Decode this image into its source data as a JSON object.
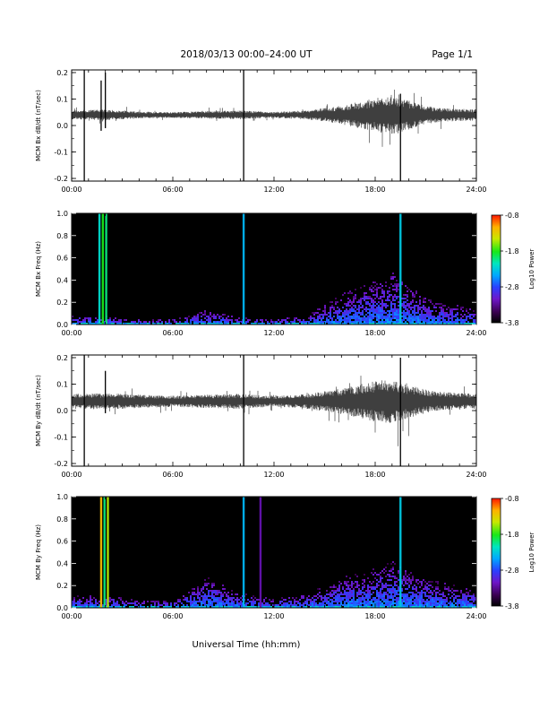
{
  "header": {
    "title": "2018/03/13   00:00–24:00 UT",
    "page": "Page 1/1"
  },
  "xlabel": "Universal Time (hh:mm)",
  "colors": {
    "trace": "#000000",
    "background": "#000000",
    "colormap": [
      "#000000",
      "#3a0050",
      "#6e16c8",
      "#2a40ff",
      "#00a8ff",
      "#00e6c0",
      "#18e818",
      "#c8e800",
      "#ffb000",
      "#ff1800"
    ]
  },
  "chart_data": [
    {
      "type": "line",
      "panel": "bx-dbdt",
      "ylabel": "MCM Bx dB/dt (nT/sec)",
      "xlim": [
        0,
        24
      ],
      "ylim": [
        -0.21,
        0.21
      ],
      "xticks": [
        "00:00",
        "06:00",
        "12:00",
        "18:00",
        "24:00"
      ],
      "yticks": [
        "-0.2",
        "-0.1",
        "0.0",
        "0.1",
        "0.2"
      ],
      "baseline": 0.04,
      "amplitude_envelope": {
        "hours": [
          0,
          2,
          4,
          6,
          8,
          10,
          12,
          14,
          16,
          17,
          18,
          19,
          20,
          21,
          22,
          24
        ],
        "amplitude": [
          0.012,
          0.015,
          0.009,
          0.008,
          0.01,
          0.012,
          0.008,
          0.012,
          0.025,
          0.035,
          0.045,
          0.055,
          0.04,
          0.025,
          0.018,
          0.015
        ]
      },
      "spikes": [
        {
          "hour": 0.75,
          "min": -0.21,
          "max": 0.21
        },
        {
          "hour": 1.75,
          "min": -0.02,
          "max": 0.17
        },
        {
          "hour": 2.0,
          "min": -0.01,
          "max": 0.2
        },
        {
          "hour": 10.2,
          "min": -0.21,
          "max": 0.21
        },
        {
          "hour": 19.5,
          "min": -0.21,
          "max": 0.12
        }
      ]
    },
    {
      "type": "heatmap",
      "panel": "bx-freq",
      "ylabel": "MCM Bx Freq (Hz)",
      "colorbar_label": "Log10 Power",
      "colorbar_ticks": [
        "-0.8",
        "-1.8",
        "-2.8",
        "-3.8"
      ],
      "clim": [
        -3.8,
        -0.8
      ],
      "xlim": [
        0,
        24
      ],
      "ylim": [
        0,
        1.0
      ],
      "xticks": [
        "00:00",
        "06:00",
        "12:00",
        "18:00",
        "24:00"
      ],
      "yticks": [
        "0.0",
        "0.2",
        "0.4",
        "0.6",
        "0.8",
        "1.0"
      ],
      "activity_envelope": {
        "hours": [
          0,
          2,
          4,
          6,
          8,
          10,
          12,
          14,
          16,
          17,
          18,
          19,
          20,
          21,
          22,
          24
        ],
        "max_freq": [
          0.08,
          0.08,
          0.05,
          0.05,
          0.12,
          0.06,
          0.05,
          0.08,
          0.25,
          0.3,
          0.35,
          0.42,
          0.3,
          0.22,
          0.18,
          0.12
        ]
      },
      "broadband_bursts": [
        {
          "hour": 1.65,
          "level": -2.2
        },
        {
          "hour": 1.85,
          "level": -1.8
        },
        {
          "hour": 2.05,
          "level": -2.0
        },
        {
          "hour": 10.2,
          "level": -2.4
        },
        {
          "hour": 19.5,
          "level": -2.3
        }
      ]
    },
    {
      "type": "line",
      "panel": "by-dbdt",
      "ylabel": "MCM By dB/dt (nT/sec)",
      "xlim": [
        0,
        24
      ],
      "ylim": [
        -0.21,
        0.21
      ],
      "xticks": [
        "00:00",
        "06:00",
        "12:00",
        "18:00",
        "24:00"
      ],
      "yticks": [
        "-0.2",
        "-0.1",
        "0.0",
        "0.1",
        "0.2"
      ],
      "baseline": 0.035,
      "amplitude_envelope": {
        "hours": [
          0,
          2,
          4,
          6,
          8,
          10,
          12,
          14,
          16,
          17,
          18,
          19,
          20,
          21,
          22,
          24
        ],
        "amplitude": [
          0.02,
          0.022,
          0.018,
          0.015,
          0.018,
          0.02,
          0.014,
          0.02,
          0.035,
          0.045,
          0.055,
          0.06,
          0.045,
          0.032,
          0.025,
          0.02
        ]
      },
      "spikes": [
        {
          "hour": 0.75,
          "min": -0.21,
          "max": 0.21
        },
        {
          "hour": 2.0,
          "min": -0.01,
          "max": 0.15
        },
        {
          "hour": 10.2,
          "min": -0.21,
          "max": 0.21
        },
        {
          "hour": 19.5,
          "min": -0.21,
          "max": 0.2
        }
      ]
    },
    {
      "type": "heatmap",
      "panel": "by-freq",
      "ylabel": "MCM By Freq (Hz)",
      "colorbar_label": "Log10 Power",
      "colorbar_ticks": [
        "-0.8",
        "-1.8",
        "-2.8",
        "-3.8"
      ],
      "clim": [
        -3.8,
        -0.8
      ],
      "xlim": [
        0,
        24
      ],
      "ylim": [
        0,
        1.0
      ],
      "xticks": [
        "00:00",
        "06:00",
        "12:00",
        "18:00",
        "24:00"
      ],
      "yticks": [
        "0.0",
        "0.2",
        "0.4",
        "0.6",
        "0.8",
        "1.0"
      ],
      "activity_envelope": {
        "hours": [
          0,
          2,
          4,
          6,
          8,
          10,
          12,
          14,
          16,
          17,
          18,
          19,
          20,
          21,
          22,
          24
        ],
        "max_freq": [
          0.1,
          0.1,
          0.07,
          0.06,
          0.25,
          0.12,
          0.08,
          0.12,
          0.25,
          0.28,
          0.32,
          0.38,
          0.3,
          0.24,
          0.2,
          0.15
        ]
      },
      "broadband_bursts": [
        {
          "hour": 1.75,
          "level": -1.2
        },
        {
          "hour": 1.95,
          "level": -2.0
        },
        {
          "hour": 2.15,
          "level": -1.5
        },
        {
          "hour": 10.2,
          "level": -2.4
        },
        {
          "hour": 11.2,
          "level": -3.2
        },
        {
          "hour": 19.5,
          "level": -2.3
        }
      ]
    }
  ]
}
